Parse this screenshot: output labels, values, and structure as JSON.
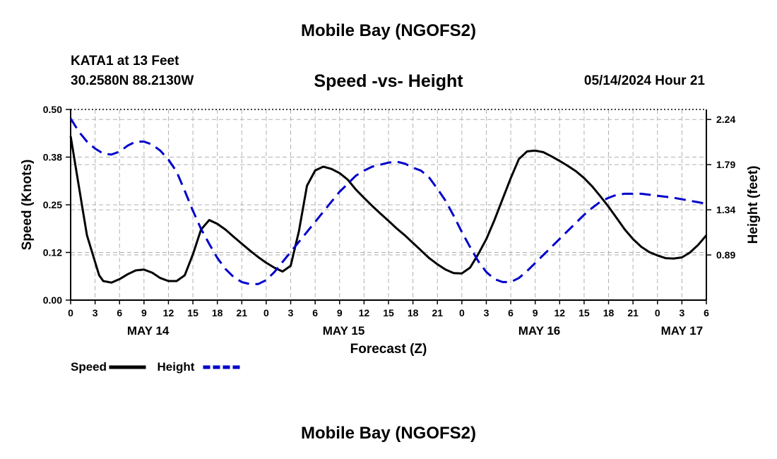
{
  "page": {
    "title": "Mobile Bay (NGOFS2)",
    "footer_title": "Mobile Bay (NGOFS2)",
    "station": "KATA1 at 13 Feet",
    "coordinates": "30.2580N  88.2130W",
    "subtitle": "Speed -vs- Height",
    "datetime": "05/14/2024 Hour 21"
  },
  "chart_data": {
    "type": "line",
    "title": "Speed -vs- Height",
    "xlabel": "Forecast (Z)",
    "ylabel": "Speed (Knots)",
    "y2label": "Height (feet)",
    "x_unit": "forecast hours from May 14 00Z",
    "xlim": [
      0,
      78
    ],
    "ylim": [
      0.0,
      0.5
    ],
    "y2lim": [
      0.44,
      2.34
    ],
    "y_ticks": [
      "0.00",
      "0.12",
      "0.25",
      "0.38",
      "0.50"
    ],
    "y_tick_values": [
      0.0,
      0.125,
      0.25,
      0.375,
      0.5
    ],
    "y2_ticks": [
      "0.89",
      "1.34",
      "1.79",
      "2.24"
    ],
    "y2_tick_values": [
      0.89,
      1.34,
      1.79,
      2.24
    ],
    "x_ticks": [
      "0",
      "3",
      "6",
      "9",
      "12",
      "15",
      "18",
      "21",
      "0",
      "3",
      "6",
      "9",
      "12",
      "15",
      "18",
      "21",
      "0",
      "3",
      "6",
      "9",
      "12",
      "15",
      "18",
      "21",
      "0",
      "3",
      "6"
    ],
    "x_tick_values": [
      0,
      3,
      6,
      9,
      12,
      15,
      18,
      21,
      24,
      27,
      30,
      33,
      36,
      39,
      42,
      45,
      48,
      51,
      54,
      57,
      60,
      63,
      66,
      69,
      72,
      75,
      78
    ],
    "day_labels": [
      {
        "label": "MAY 14",
        "x": 9.5
      },
      {
        "label": "MAY 15",
        "x": 33.5
      },
      {
        "label": "MAY 16",
        "x": 57.5
      },
      {
        "label": "MAY 17",
        "x": 75
      }
    ],
    "grid": true,
    "series": [
      {
        "name": "Speed",
        "axis": "left",
        "color": "#000000",
        "dash": "solid",
        "points": [
          [
            0,
            0.43
          ],
          [
            1,
            0.3
          ],
          [
            2,
            0.17
          ],
          [
            3,
            0.1
          ],
          [
            3.5,
            0.065
          ],
          [
            4,
            0.05
          ],
          [
            5,
            0.046
          ],
          [
            6,
            0.055
          ],
          [
            7,
            0.068
          ],
          [
            8,
            0.078
          ],
          [
            9,
            0.08
          ],
          [
            10,
            0.072
          ],
          [
            11,
            0.058
          ],
          [
            12,
            0.05
          ],
          [
            13,
            0.05
          ],
          [
            14,
            0.065
          ],
          [
            15,
            0.12
          ],
          [
            16,
            0.185
          ],
          [
            17,
            0.21
          ],
          [
            18,
            0.2
          ],
          [
            19,
            0.185
          ],
          [
            20,
            0.166
          ],
          [
            21,
            0.148
          ],
          [
            22,
            0.13
          ],
          [
            23,
            0.113
          ],
          [
            24,
            0.098
          ],
          [
            25,
            0.085
          ],
          [
            26,
            0.075
          ],
          [
            27,
            0.09
          ],
          [
            28,
            0.18
          ],
          [
            29,
            0.3
          ],
          [
            30,
            0.34
          ],
          [
            31,
            0.35
          ],
          [
            32,
            0.344
          ],
          [
            33,
            0.333
          ],
          [
            34,
            0.316
          ],
          [
            35,
            0.29
          ],
          [
            36,
            0.268
          ],
          [
            37,
            0.247
          ],
          [
            38,
            0.227
          ],
          [
            39,
            0.208
          ],
          [
            40,
            0.188
          ],
          [
            41,
            0.17
          ],
          [
            42,
            0.15
          ],
          [
            43,
            0.13
          ],
          [
            44,
            0.11
          ],
          [
            45,
            0.094
          ],
          [
            46,
            0.08
          ],
          [
            47,
            0.071
          ],
          [
            48,
            0.07
          ],
          [
            49,
            0.085
          ],
          [
            50,
            0.12
          ],
          [
            51,
            0.16
          ],
          [
            52,
            0.21
          ],
          [
            53,
            0.265
          ],
          [
            54,
            0.32
          ],
          [
            55,
            0.37
          ],
          [
            56,
            0.39
          ],
          [
            57,
            0.392
          ],
          [
            58,
            0.388
          ],
          [
            59,
            0.377
          ],
          [
            60,
            0.365
          ],
          [
            61,
            0.352
          ],
          [
            62,
            0.338
          ],
          [
            63,
            0.32
          ],
          [
            64,
            0.298
          ],
          [
            65,
            0.272
          ],
          [
            66,
            0.245
          ],
          [
            67,
            0.215
          ],
          [
            68,
            0.185
          ],
          [
            69,
            0.16
          ],
          [
            70,
            0.14
          ],
          [
            71,
            0.126
          ],
          [
            72,
            0.117
          ],
          [
            73,
            0.11
          ],
          [
            74,
            0.109
          ],
          [
            75,
            0.112
          ],
          [
            76,
            0.125
          ],
          [
            77,
            0.145
          ],
          [
            78,
            0.17
          ]
        ]
      },
      {
        "name": "Height",
        "axis": "right",
        "color": "#0000cc",
        "dash": "dashed",
        "points": [
          [
            0,
            2.25
          ],
          [
            1,
            2.12
          ],
          [
            2,
            2.02
          ],
          [
            3,
            1.95
          ],
          [
            4,
            1.9
          ],
          [
            5,
            1.89
          ],
          [
            6,
            1.92
          ],
          [
            7,
            1.98
          ],
          [
            8,
            2.02
          ],
          [
            9,
            2.02
          ],
          [
            10,
            1.99
          ],
          [
            11,
            1.93
          ],
          [
            12,
            1.84
          ],
          [
            13,
            1.72
          ],
          [
            14,
            1.53
          ],
          [
            15,
            1.33
          ],
          [
            16,
            1.15
          ],
          [
            17,
            1.0
          ],
          [
            18,
            0.86
          ],
          [
            19,
            0.75
          ],
          [
            20,
            0.67
          ],
          [
            21,
            0.62
          ],
          [
            22,
            0.6
          ],
          [
            23,
            0.6
          ],
          [
            24,
            0.64
          ],
          [
            25,
            0.72
          ],
          [
            26,
            0.82
          ],
          [
            27,
            0.92
          ],
          [
            28,
            1.02
          ],
          [
            29,
            1.12
          ],
          [
            30,
            1.22
          ],
          [
            31,
            1.32
          ],
          [
            32,
            1.42
          ],
          [
            33,
            1.52
          ],
          [
            34,
            1.6
          ],
          [
            35,
            1.68
          ],
          [
            36,
            1.73
          ],
          [
            37,
            1.77
          ],
          [
            38,
            1.79
          ],
          [
            39,
            1.81
          ],
          [
            40,
            1.82
          ],
          [
            41,
            1.8
          ],
          [
            42,
            1.76
          ],
          [
            43,
            1.73
          ],
          [
            44,
            1.66
          ],
          [
            45,
            1.55
          ],
          [
            46,
            1.43
          ],
          [
            47,
            1.28
          ],
          [
            48,
            1.12
          ],
          [
            49,
            0.97
          ],
          [
            50,
            0.83
          ],
          [
            51,
            0.72
          ],
          [
            52,
            0.65
          ],
          [
            53,
            0.62
          ],
          [
            54,
            0.62
          ],
          [
            55,
            0.66
          ],
          [
            56,
            0.73
          ],
          [
            57,
            0.81
          ],
          [
            58,
            0.89
          ],
          [
            59,
            0.97
          ],
          [
            60,
            1.05
          ],
          [
            61,
            1.13
          ],
          [
            62,
            1.21
          ],
          [
            63,
            1.29
          ],
          [
            64,
            1.36
          ],
          [
            65,
            1.42
          ],
          [
            66,
            1.46
          ],
          [
            67,
            1.49
          ],
          [
            68,
            1.5
          ],
          [
            69,
            1.5
          ],
          [
            70,
            1.5
          ],
          [
            71,
            1.49
          ],
          [
            72,
            1.48
          ],
          [
            73,
            1.47
          ],
          [
            74,
            1.46
          ],
          [
            75,
            1.445
          ],
          [
            76,
            1.43
          ],
          [
            77,
            1.415
          ],
          [
            78,
            1.4
          ]
        ]
      }
    ],
    "legend": [
      {
        "label": "Speed",
        "color": "#000000",
        "dash": "solid"
      },
      {
        "label": "Height",
        "color": "#0000cc",
        "dash": "dashed"
      }
    ],
    "legend_position": "bottom-left"
  }
}
